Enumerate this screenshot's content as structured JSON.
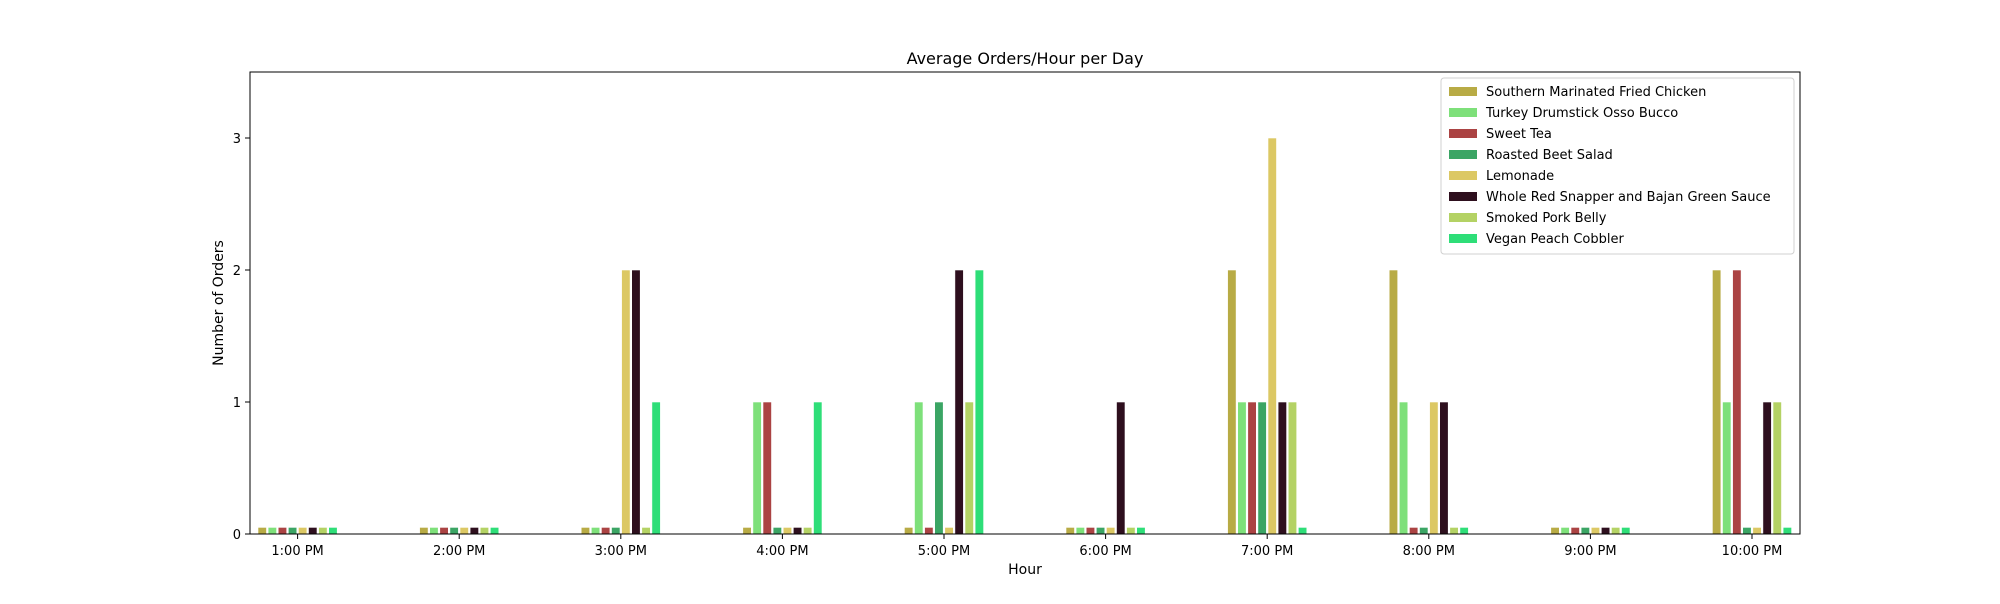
{
  "chart_data": {
    "type": "bar",
    "title": "Average Orders/Hour per Day",
    "xlabel": "Hour",
    "ylabel": "Number of Orders",
    "categories": [
      "1:00 PM",
      "2:00 PM",
      "3:00 PM",
      "4:00 PM",
      "5:00 PM",
      "6:00 PM",
      "7:00 PM",
      "8:00 PM",
      "9:00 PM",
      "10:00 PM"
    ],
    "yticks": [
      "0",
      "1",
      "2",
      "3"
    ],
    "ylim": [
      0,
      3.5
    ],
    "grid": false,
    "legend_position": "top-right",
    "series": [
      {
        "name": "Southern Marinated Fried Chicken",
        "color": "#b8ab45",
        "values": [
          0.05,
          0.05,
          0.05,
          0.05,
          0.05,
          0.05,
          2,
          2,
          0.05,
          2
        ]
      },
      {
        "name": "Turkey Drumstick Osso Bucco",
        "color": "#7ee07a",
        "values": [
          0.05,
          0.05,
          0.05,
          1,
          1,
          0.05,
          1,
          1,
          0.05,
          1
        ]
      },
      {
        "name": "Sweet Tea",
        "color": "#ab4343",
        "values": [
          0.05,
          0.05,
          0.05,
          1,
          0.05,
          0.05,
          1,
          0.05,
          0.05,
          2
        ]
      },
      {
        "name": "Roasted Beet Salad",
        "color": "#3ba564",
        "values": [
          0.05,
          0.05,
          0.05,
          0.05,
          1,
          0.05,
          1,
          0.05,
          0.05,
          0.05
        ]
      },
      {
        "name": "Lemonade",
        "color": "#dcc864",
        "values": [
          0.05,
          0.05,
          2,
          0.05,
          0.05,
          0.05,
          3,
          1,
          0.05,
          0.05
        ]
      },
      {
        "name": "Whole Red Snapper and Bajan Green Sauce",
        "color": "#2e0f1e",
        "values": [
          0.05,
          0.05,
          2,
          0.05,
          2,
          1,
          1,
          1,
          0.05,
          1
        ]
      },
      {
        "name": "Smoked Pork Belly",
        "color": "#b4d264",
        "values": [
          0.05,
          0.05,
          0.05,
          0.05,
          1,
          0.05,
          1,
          0.05,
          0.05,
          1
        ]
      },
      {
        "name": "Vegan Peach Cobbler",
        "color": "#2ede78",
        "values": [
          0.05,
          0.05,
          1,
          1,
          2,
          0.05,
          0.05,
          0.05,
          0.05,
          0.05
        ]
      }
    ]
  }
}
